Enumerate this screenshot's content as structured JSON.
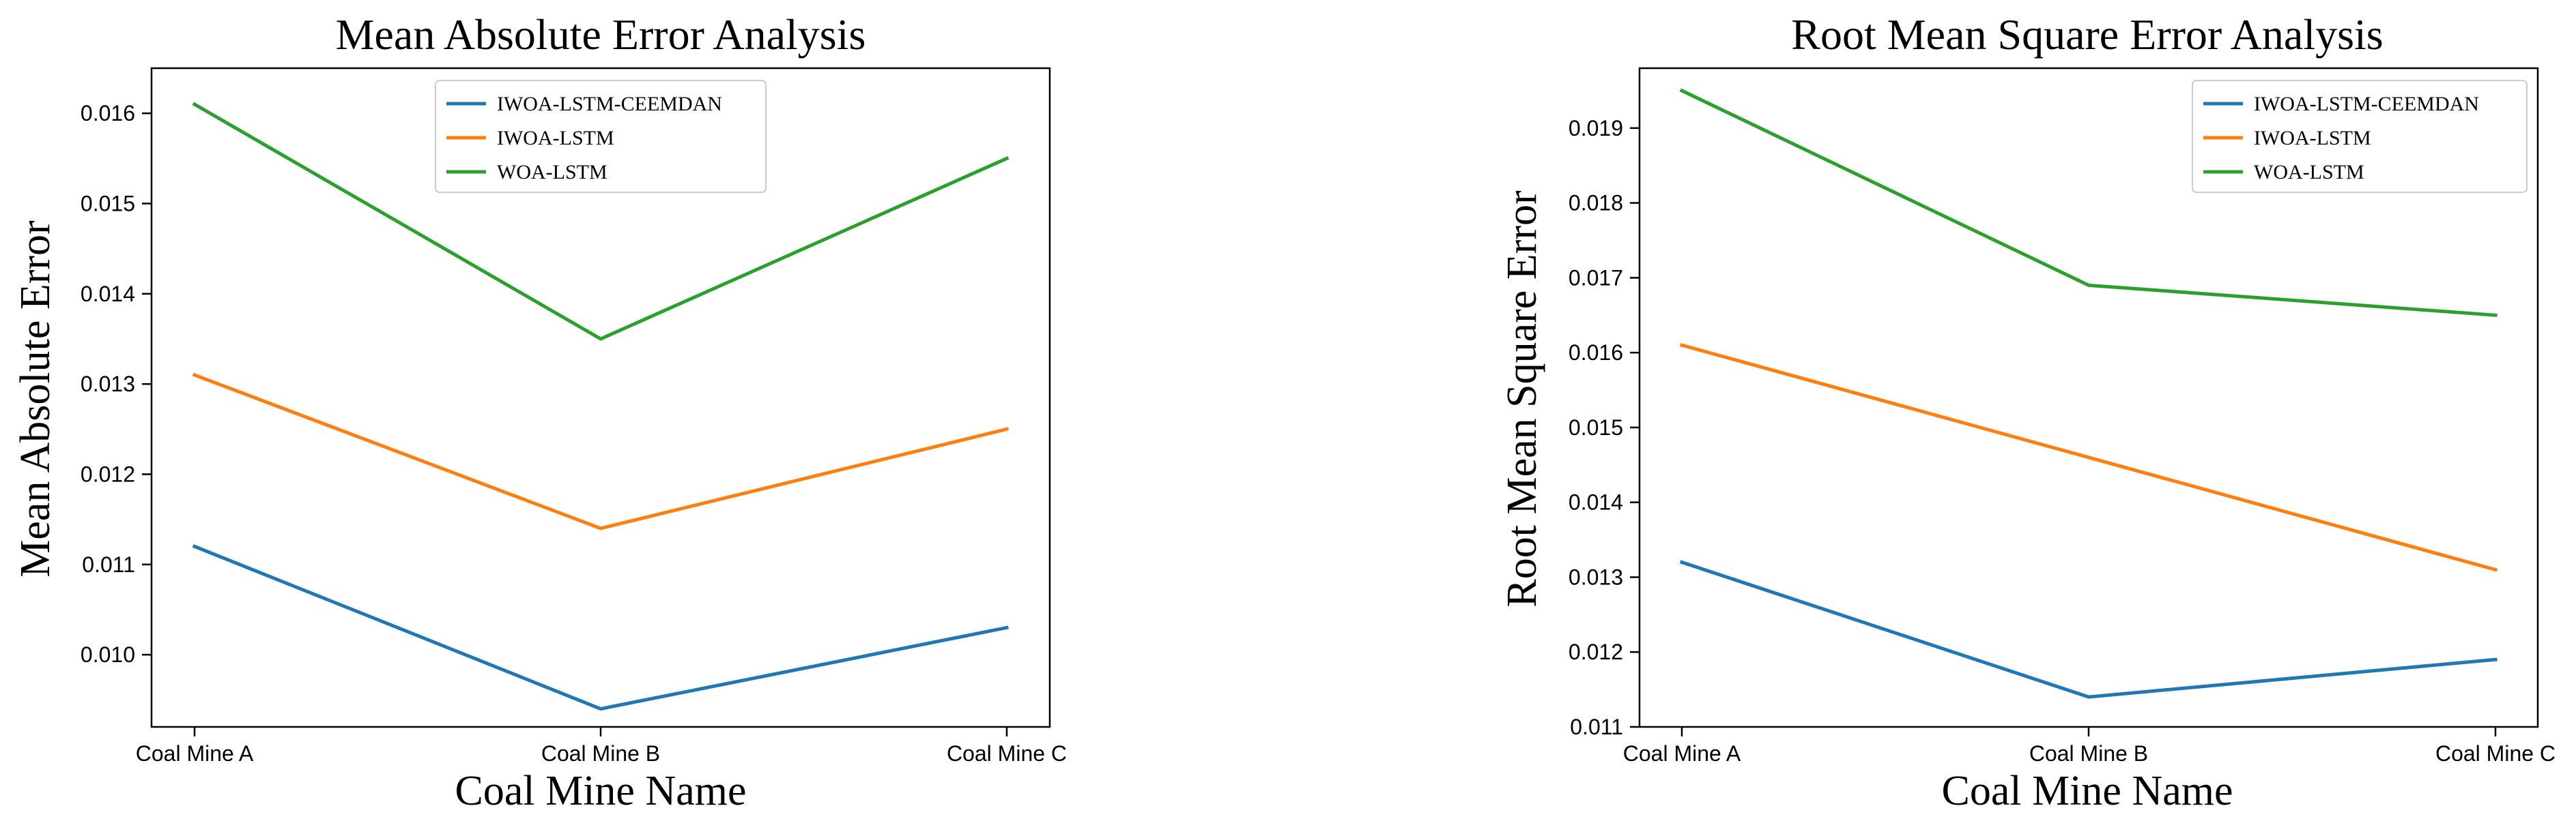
{
  "chart_data": [
    {
      "type": "line",
      "title": "Mean Absolute Error Analysis",
      "xlabel": "Coal Mine Name",
      "ylabel": "Mean Absolute Error",
      "categories": [
        "Coal Mine A",
        "Coal Mine B",
        "Coal Mine C"
      ],
      "ylim": [
        0.0092,
        0.0165
      ],
      "yticks": [
        0.01,
        0.011,
        0.012,
        0.013,
        0.014,
        0.015,
        0.016
      ],
      "ytick_labels": [
        "0.010",
        "0.011",
        "0.012",
        "0.013",
        "0.014",
        "0.015",
        "0.016"
      ],
      "legend_position": "top-center",
      "series": [
        {
          "name": "IWOA-LSTM-CEEMDAN",
          "color": "#1f77b4",
          "values": [
            0.0112,
            0.0094,
            0.0103
          ]
        },
        {
          "name": "IWOA-LSTM",
          "color": "#ff7f0e",
          "values": [
            0.0131,
            0.0114,
            0.0125
          ]
        },
        {
          "name": "WOA-LSTM",
          "color": "#2ca02c",
          "values": [
            0.0161,
            0.0135,
            0.0155
          ]
        }
      ]
    },
    {
      "type": "line",
      "title": "Root Mean Square Error Analysis",
      "xlabel": "Coal Mine Name",
      "ylabel": "Root Mean Square Error",
      "categories": [
        "Coal Mine A",
        "Coal Mine B",
        "Coal Mine C"
      ],
      "ylim": [
        0.011,
        0.0198
      ],
      "yticks": [
        0.011,
        0.012,
        0.013,
        0.014,
        0.015,
        0.016,
        0.017,
        0.018,
        0.019
      ],
      "ytick_labels": [
        "0.011",
        "0.012",
        "0.013",
        "0.014",
        "0.015",
        "0.016",
        "0.017",
        "0.018",
        "0.019"
      ],
      "legend_position": "top-right",
      "series": [
        {
          "name": "IWOA-LSTM-CEEMDAN",
          "color": "#1f77b4",
          "values": [
            0.0132,
            0.0114,
            0.0119
          ]
        },
        {
          "name": "IWOA-LSTM",
          "color": "#ff7f0e",
          "values": [
            0.0161,
            0.0146,
            0.0131
          ]
        },
        {
          "name": "WOA-LSTM",
          "color": "#2ca02c",
          "values": [
            0.0195,
            0.0169,
            0.0165
          ]
        }
      ]
    }
  ]
}
